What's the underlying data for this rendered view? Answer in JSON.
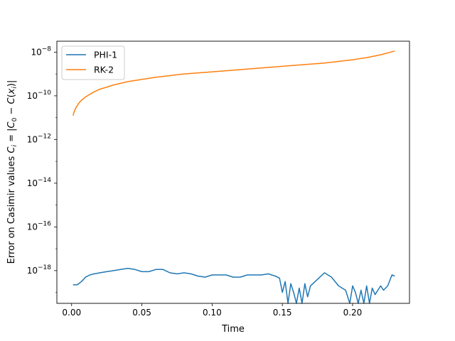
{
  "chart_data": {
    "type": "line",
    "xlabel": "Time",
    "ylabel_prefix": "Error on Casimir values ",
    "ylabel_math": "C_i = |C_0 − C(x_i)|",
    "yscale": "log",
    "xlim": [
      -0.0105,
      0.2405
    ],
    "ylim_log10": [
      -19.5,
      -7.5
    ],
    "xticks": [
      0.0,
      0.05,
      0.1,
      0.15,
      0.2
    ],
    "xtick_labels": [
      "0.00",
      "0.05",
      "0.10",
      "0.15",
      "0.20"
    ],
    "yticks_exp": [
      -8,
      -10,
      -12,
      -14,
      -16,
      -18
    ],
    "legend_position": "upper-left",
    "series": [
      {
        "name": "PHI-1",
        "color": "#1f77b4",
        "x": [
          0.001,
          0.004,
          0.007,
          0.01,
          0.013,
          0.016,
          0.02,
          0.025,
          0.03,
          0.035,
          0.04,
          0.045,
          0.05,
          0.055,
          0.06,
          0.065,
          0.07,
          0.075,
          0.08,
          0.085,
          0.09,
          0.095,
          0.1,
          0.105,
          0.11,
          0.115,
          0.12,
          0.125,
          0.13,
          0.135,
          0.14,
          0.145,
          0.148,
          0.15,
          0.152,
          0.154,
          0.156,
          0.158,
          0.16,
          0.162,
          0.164,
          0.166,
          0.168,
          0.17,
          0.175,
          0.18,
          0.185,
          0.19,
          0.195,
          0.198,
          0.2,
          0.202,
          0.204,
          0.206,
          0.208,
          0.21,
          0.212,
          0.214,
          0.216,
          0.218,
          0.22,
          0.222,
          0.225,
          0.228,
          0.23
        ],
        "y_log10": [
          -18.65,
          -18.65,
          -18.5,
          -18.3,
          -18.2,
          -18.15,
          -18.1,
          -18.05,
          -18.0,
          -17.95,
          -17.9,
          -17.95,
          -18.05,
          -18.05,
          -17.95,
          -17.95,
          -18.1,
          -18.15,
          -18.1,
          -18.15,
          -18.25,
          -18.3,
          -18.2,
          -18.2,
          -18.2,
          -18.3,
          -18.3,
          -18.2,
          -18.2,
          -18.2,
          -18.15,
          -18.25,
          -18.35,
          -19.0,
          -18.5,
          -19.5,
          -18.6,
          -19.0,
          -19.5,
          -18.8,
          -19.5,
          -18.6,
          -19.2,
          -18.7,
          -18.4,
          -18.1,
          -18.3,
          -18.7,
          -18.9,
          -19.5,
          -18.7,
          -19.0,
          -19.5,
          -18.9,
          -19.5,
          -18.7,
          -19.5,
          -18.8,
          -19.1,
          -18.9,
          -18.7,
          -18.9,
          -18.7,
          -18.2,
          -18.25
        ]
      },
      {
        "name": "RK-2",
        "color": "#ff7f0e",
        "x": [
          0.001,
          0.002,
          0.003,
          0.005,
          0.007,
          0.01,
          0.015,
          0.02,
          0.025,
          0.03,
          0.04,
          0.05,
          0.06,
          0.08,
          0.1,
          0.12,
          0.14,
          0.16,
          0.18,
          0.2,
          0.21,
          0.22,
          0.23
        ],
        "y_log10": [
          -10.9,
          -10.7,
          -10.55,
          -10.35,
          -10.2,
          -10.05,
          -9.85,
          -9.7,
          -9.6,
          -9.5,
          -9.35,
          -9.25,
          -9.15,
          -9.0,
          -8.9,
          -8.8,
          -8.7,
          -8.6,
          -8.5,
          -8.35,
          -8.25,
          -8.12,
          -7.95
        ]
      }
    ]
  }
}
